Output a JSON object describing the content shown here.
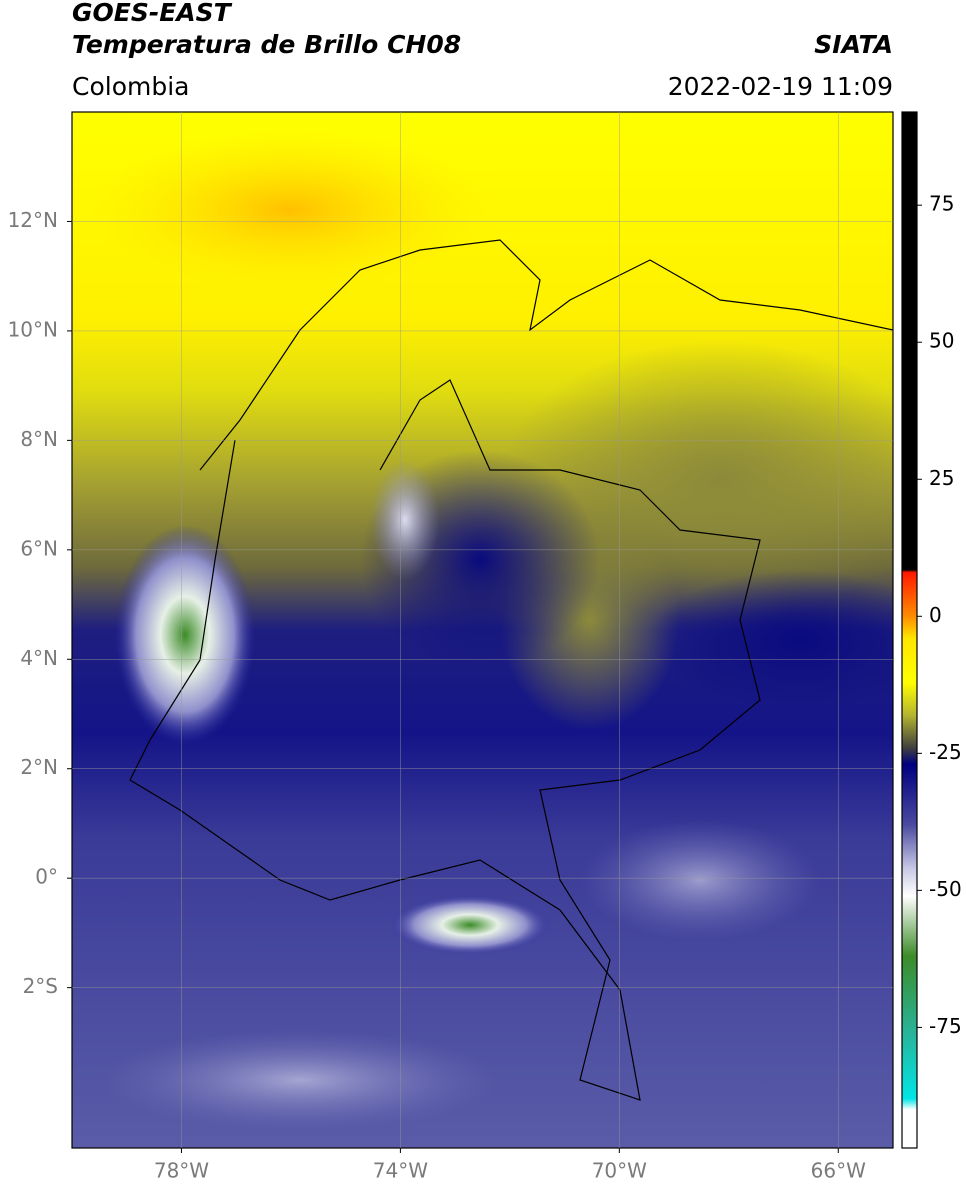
{
  "header": {
    "title": "GOES-EAST",
    "subtitle": "Temperatura de Brillo CH08",
    "source": "SIATA",
    "region": "Colombia",
    "datetime": "2022-02-19 11:09"
  },
  "map": {
    "xlim": [
      -80,
      -65
    ],
    "ylim": [
      -4.93,
      14
    ],
    "yticks": [
      {
        "value": 12,
        "label": "12°N"
      },
      {
        "value": 10,
        "label": "10°N"
      },
      {
        "value": 8,
        "label": "8°N"
      },
      {
        "value": 6,
        "label": "6°N"
      },
      {
        "value": 4,
        "label": "4°N"
      },
      {
        "value": 2,
        "label": "2°N"
      },
      {
        "value": 0,
        "label": "0°"
      },
      {
        "value": -2,
        "label": "2°S"
      }
    ],
    "xticks": [
      {
        "value": -78,
        "label": "78°W"
      },
      {
        "value": -74,
        "label": "74°W"
      },
      {
        "value": -70,
        "label": "70°W"
      },
      {
        "value": -66,
        "label": "66°W"
      }
    ],
    "grid": true
  },
  "colorbar": {
    "lim": [
      -97,
      92
    ],
    "ticks": [
      75,
      50,
      25,
      0,
      -25,
      -50,
      -75
    ],
    "stops": [
      {
        "value": 92,
        "color": "#000000"
      },
      {
        "value": 8.5,
        "color": "#000000"
      },
      {
        "value": 8,
        "color": "#ff1a00"
      },
      {
        "value": 0,
        "color": "#ff8c00"
      },
      {
        "value": -4,
        "color": "#ffe600"
      },
      {
        "value": -12,
        "color": "#ffff00"
      },
      {
        "value": -18,
        "color": "#b5b530"
      },
      {
        "value": -24,
        "color": "#404040"
      },
      {
        "value": -27,
        "color": "#000080"
      },
      {
        "value": -38,
        "color": "#4a4aa0"
      },
      {
        "value": -46,
        "color": "#c8c8e6"
      },
      {
        "value": -51,
        "color": "#ffffff"
      },
      {
        "value": -62,
        "color": "#3c8c28"
      },
      {
        "value": -76,
        "color": "#28b49a"
      },
      {
        "value": -88,
        "color": "#00e6e6"
      },
      {
        "value": -90,
        "color": "#ffffff"
      },
      {
        "value": -97,
        "color": "#ffffff"
      }
    ]
  }
}
